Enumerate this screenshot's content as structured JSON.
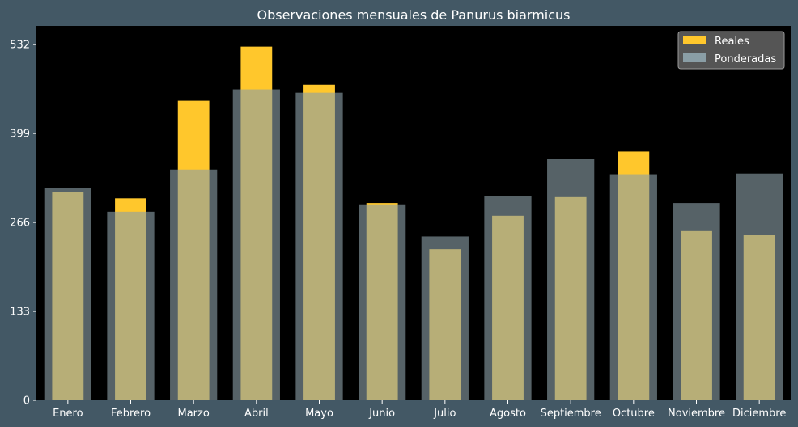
{
  "chart_data": {
    "type": "bar",
    "title": "Observaciones mensuales de Panurus biarmicus",
    "xlabel": "",
    "ylabel": "",
    "categories": [
      "Enero",
      "Febrero",
      "Marzo",
      "Abril",
      "Mayo",
      "Junio",
      "Julio",
      "Agosto",
      "Septiembre",
      "Octubre",
      "Noviembre",
      "Diciembre"
    ],
    "series": [
      {
        "name": "Reales",
        "values": [
          311,
          302,
          448,
          529,
          472,
          295,
          226,
          276,
          305,
          372,
          253,
          247
        ],
        "color": "#ffc72c"
      },
      {
        "name": "Ponderadas",
        "values": [
          317,
          282,
          345,
          465,
          460,
          293,
          245,
          306,
          361,
          338,
          295,
          339
        ],
        "color": "#8a9ea6"
      }
    ],
    "yticks": [
      0,
      133,
      266,
      399,
      532
    ],
    "ylim": [
      0,
      560
    ],
    "grid": false,
    "legend_position": "top-right",
    "colors": {
      "background": "#435865",
      "plot_background": "#000000",
      "text": "#ffffff"
    }
  }
}
